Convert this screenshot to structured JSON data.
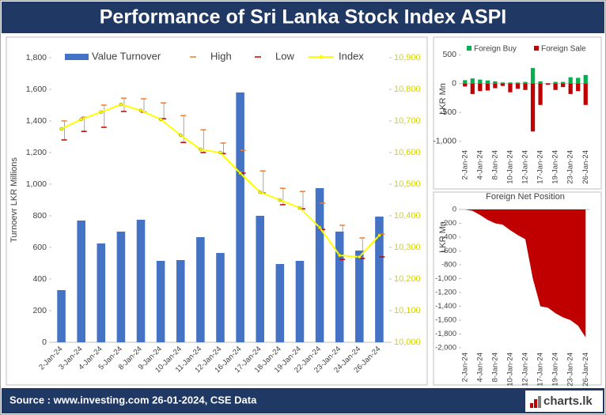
{
  "title": "Performance of Sri Lanka Stock Index ASPI",
  "source": "Source : www.investing.com 26-01-2024, CSE Data",
  "logo": "charts.lk",
  "chart_data": [
    {
      "type": "bar",
      "y_label": "Turnoevr LKR Millions",
      "categories": [
        "2-Jan-24",
        "3-Jan-24",
        "4-Jan-24",
        "5-Jan-24",
        "8-Jan-24",
        "9-Jan-24",
        "10-Jan-24",
        "11-Jan-24",
        "12-Jan-24",
        "16-Jan-24",
        "17-Jan-24",
        "18-Jan-24",
        "19-Jan-24",
        "22-Jan-24",
        "23-Jan-24",
        "24-Jan-24",
        "26-Jan-24"
      ],
      "ylim": [
        0,
        1800
      ],
      "yticks": [
        0,
        200,
        400,
        600,
        800,
        {
          "value": 1000,
          "label": "1,000"
        },
        {
          "value": 1200,
          "label": "1,200"
        },
        {
          "value": 1400,
          "label": "1,400"
        },
        {
          "value": 1600,
          "label": "1,600"
        },
        {
          "value": 1800,
          "label": "1,800"
        }
      ],
      "y2lim": [
        10000,
        10900
      ],
      "y2ticks": [
        {
          "value": 10000,
          "label": "10,000"
        },
        {
          "value": 10100,
          "label": "10,100"
        },
        {
          "value": 10200,
          "label": "10,200"
        },
        {
          "value": 10300,
          "label": "10,300"
        },
        {
          "value": 10400,
          "label": "10,400"
        },
        {
          "value": 10500,
          "label": "10,500"
        },
        {
          "value": 10600,
          "label": "10,600"
        },
        {
          "value": 10700,
          "label": "10,700"
        },
        {
          "value": 10800,
          "label": "10,800"
        },
        {
          "value": 10900,
          "label": "10,900"
        }
      ],
      "series": [
        {
          "name": "Value Turnover",
          "color": "#4472c4",
          "mark": "bar",
          "values": [
            330,
            770,
            625,
            700,
            775,
            515,
            520,
            665,
            565,
            1580,
            800,
            495,
            515,
            975,
            700,
            580,
            795
          ]
        },
        {
          "name": "High",
          "color": "#ed7d31",
          "mark": "dash",
          "axis": "y2",
          "values": [
            10700,
            10712,
            10750,
            10772,
            10770,
            10757,
            10717,
            10672,
            10630,
            10607,
            10542,
            10487,
            10477,
            10440,
            10370,
            10330,
            10342
          ]
        },
        {
          "name": "Low",
          "color": "#c00000",
          "mark": "dash",
          "axis": "y2",
          "values": [
            10640,
            10667,
            10680,
            10730,
            10728,
            10707,
            10632,
            10600,
            10597,
            10535,
            10472,
            10435,
            10422,
            10357,
            10262,
            10265,
            10270
          ]
        },
        {
          "name": "Index",
          "color": "#ffff00",
          "mark": "line",
          "axis": "y2",
          "values": [
            10675,
            10705,
            10728,
            10752,
            10733,
            10705,
            10655,
            10610,
            10600,
            10535,
            10475,
            10450,
            10425,
            10363,
            10275,
            10270,
            10338
          ]
        }
      ]
    },
    {
      "type": "bar",
      "y_label": "LKR Mn",
      "categories": [
        "2-Jan-24",
        null,
        "4-Jan-24",
        null,
        "8-Jan-24",
        null,
        "10-Jan-24",
        null,
        "12-Jan-24",
        null,
        "17-Jan-24",
        null,
        "19-Jan-24",
        null,
        "23-Jan-24",
        null,
        "26-Jan-24"
      ],
      "ylim": [
        -1100,
        600
      ],
      "yticks": [
        {
          "value": -1000,
          "label": "-1,000"
        },
        -500,
        0,
        500
      ],
      "series": [
        {
          "name": "Foreign Buy",
          "color": "#00b050",
          "mark": "bar",
          "values": [
            60,
            90,
            70,
            55,
            40,
            20,
            20,
            20,
            30,
            270,
            40,
            10,
            30,
            30,
            110,
            100,
            150
          ]
        },
        {
          "name": "Foreign Sale",
          "color": "#c00000",
          "mark": "bar",
          "values": [
            -50,
            -180,
            -130,
            -120,
            -80,
            -40,
            -150,
            -90,
            -110,
            -830,
            -370,
            -20,
            -110,
            -60,
            -180,
            -130,
            -370
          ]
        }
      ]
    },
    {
      "type": "area",
      "title": "Foreign Net Position",
      "y_label": "LKR Mn",
      "color": "#c00000",
      "categories": [
        "2-Jan-24",
        null,
        "4-Jan-24",
        null,
        "8-Jan-24",
        null,
        "10-Jan-24",
        null,
        "12-Jan-24",
        null,
        "17-Jan-24",
        null,
        "19-Jan-24",
        null,
        "23-Jan-24",
        null,
        "26-Jan-24"
      ],
      "ylim": [
        -2000,
        0
      ],
      "yticks": [
        {
          "value": -2000,
          "label": "-2,000"
        },
        {
          "value": -1800,
          "label": "-1,800"
        },
        {
          "value": -1600,
          "label": "-1,600"
        },
        {
          "value": -1400,
          "label": "-1,400"
        },
        {
          "value": -1200,
          "label": "-1,200"
        },
        {
          "value": -1000,
          "label": "-1,000"
        },
        -800,
        -600,
        -400,
        -200,
        0
      ],
      "values": [
        0,
        -20,
        -80,
        -150,
        -200,
        -220,
        -300,
        -370,
        -430,
        -1000,
        -1400,
        -1420,
        -1500,
        -1560,
        -1600,
        -1680,
        -1850
      ]
    }
  ]
}
